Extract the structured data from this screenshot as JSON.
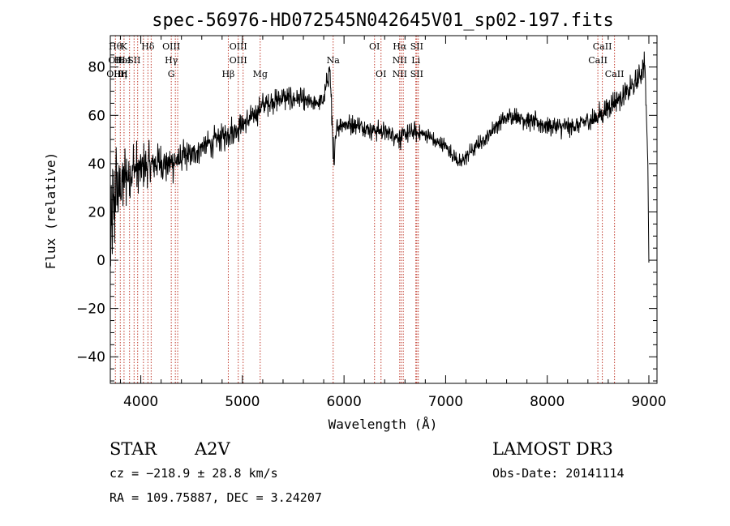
{
  "chart_data": {
    "type": "line",
    "title": "spec-56976-HD072545N042645V01_sp02-197.fits",
    "xlabel": "Wavelength (Å)",
    "ylabel": "Flux (relative)",
    "xlim": [
      3700,
      9080
    ],
    "ylim": [
      -51,
      93
    ],
    "xticks": [
      4000,
      5000,
      6000,
      7000,
      8000,
      9000
    ],
    "yticks": [
      -40,
      -20,
      0,
      20,
      40,
      60,
      80
    ],
    "series": [
      {
        "name": "flux",
        "anchor_x": [
          3700,
          3730,
          3760,
          3790,
          3820,
          3850,
          3880,
          3910,
          3950,
          4000,
          4050,
          4100,
          4150,
          4200,
          4250,
          4300,
          4350,
          4400,
          4500,
          4600,
          4700,
          4800,
          4900,
          5000,
          5100,
          5200,
          5300,
          5400,
          5500,
          5600,
          5700,
          5800,
          5860,
          5890,
          5900,
          5910,
          5930,
          6000,
          6100,
          6200,
          6300,
          6400,
          6500,
          6560,
          6600,
          6700,
          6800,
          6900,
          7000,
          7100,
          7150,
          7200,
          7300,
          7400,
          7500,
          7600,
          7700,
          7800,
          7900,
          8000,
          8100,
          8200,
          8300,
          8400,
          8450,
          8500,
          8550,
          8600,
          8650,
          8700,
          8800,
          8900,
          8960,
          8990,
          9000
        ],
        "anchor_y": [
          5,
          20,
          28,
          30,
          33,
          35,
          36,
          37,
          38,
          38,
          39,
          40,
          40,
          41,
          40,
          40,
          41,
          42,
          44,
          47,
          49,
          51,
          54,
          56,
          59,
          64,
          66,
          67,
          67,
          66,
          65,
          66,
          80,
          50,
          35,
          45,
          55,
          57,
          56,
          55,
          54,
          53,
          52,
          50,
          52,
          53,
          52,
          49,
          47,
          42,
          40,
          43,
          47,
          51,
          56,
          59,
          60,
          58,
          57,
          56,
          55,
          55,
          56,
          58,
          58,
          60,
          61,
          63,
          65,
          67,
          70,
          75,
          82,
          40,
          -1
        ],
        "noise_amplitude": [
          30,
          28,
          26,
          24,
          20,
          18,
          17,
          16,
          14,
          12,
          11,
          10,
          10,
          10,
          9,
          9,
          9,
          8,
          7,
          7,
          7,
          7,
          7,
          7,
          6,
          6,
          6,
          6,
          6,
          6,
          5,
          5,
          6,
          10,
          10,
          6,
          5,
          5,
          5,
          5,
          5,
          5,
          5,
          5,
          5,
          5,
          4,
          4,
          4,
          4,
          4,
          4,
          4,
          4,
          4,
          4,
          5,
          5,
          5,
          5,
          5,
          5,
          5,
          5,
          6,
          6,
          6,
          6,
          6,
          6,
          6,
          6,
          7,
          0,
          0
        ]
      }
    ],
    "lines": [
      {
        "x": 3750,
        "labels": [
          "Hθ",
          "OII",
          "OIII"
        ]
      },
      {
        "x": 3798,
        "labels": [
          "",
          "Hε",
          "Hη"
        ]
      },
      {
        "x": 3835,
        "labels": [
          "K",
          "He",
          "H"
        ]
      },
      {
        "x": 3889,
        "labels": [
          "",
          "I",
          ""
        ]
      },
      {
        "x": 3934,
        "labels": [
          "",
          "SII",
          ""
        ]
      },
      {
        "x": 3969,
        "labels": [
          "",
          "",
          ""
        ]
      },
      {
        "x": 4026,
        "labels": [
          "",
          "",
          ""
        ]
      },
      {
        "x": 4070,
        "labels": [
          "Hδ",
          "",
          ""
        ]
      },
      {
        "x": 4102,
        "labels": [
          "",
          "",
          ""
        ]
      },
      {
        "x": 4300,
        "labels": [
          "OIII",
          "Hγ",
          "G"
        ]
      },
      {
        "x": 4340,
        "labels": [
          "",
          "",
          ""
        ]
      },
      {
        "x": 4363,
        "labels": [
          "",
          "",
          ""
        ]
      },
      {
        "x": 4861,
        "labels": [
          "",
          "",
          "Hβ"
        ]
      },
      {
        "x": 4959,
        "labels": [
          "OIII",
          "OIII",
          ""
        ]
      },
      {
        "x": 5007,
        "labels": [
          "",
          "",
          ""
        ]
      },
      {
        "x": 5175,
        "labels": [
          "",
          "",
          "Mg"
        ]
      },
      {
        "x": 5893,
        "labels": [
          "",
          "Na",
          ""
        ]
      },
      {
        "x": 6300,
        "labels": [
          "OI",
          "",
          ""
        ]
      },
      {
        "x": 6364,
        "labels": [
          "",
          "",
          "OI"
        ]
      },
      {
        "x": 6548,
        "labels": [
          "Hα",
          "NII",
          "NII"
        ]
      },
      {
        "x": 6563,
        "labels": [
          "",
          "",
          ""
        ]
      },
      {
        "x": 6583,
        "labels": [
          "",
          "",
          ""
        ]
      },
      {
        "x": 6707,
        "labels": [
          "",
          "Li",
          ""
        ]
      },
      {
        "x": 6716,
        "labels": [
          "SII",
          "",
          "SII"
        ]
      },
      {
        "x": 6731,
        "labels": [
          "",
          "",
          ""
        ]
      },
      {
        "x": 8498,
        "labels": [
          "",
          "CaII",
          ""
        ]
      },
      {
        "x": 8542,
        "labels": [
          "CaII",
          "",
          ""
        ]
      },
      {
        "x": 8662,
        "labels": [
          "",
          "",
          "CaII"
        ]
      }
    ]
  },
  "info": {
    "object_class": "STAR",
    "subclass": "A2V",
    "survey": "LAMOST DR3",
    "cz": "cz = −218.9 ± 28.8 km/s",
    "obs_date": "Obs-Date: 20141114",
    "coords": "RA = 109.75887, DEC =   3.24207"
  },
  "colors": {
    "line_marker": "#c0392b",
    "spectrum": "#000000",
    "axis": "#000000"
  }
}
